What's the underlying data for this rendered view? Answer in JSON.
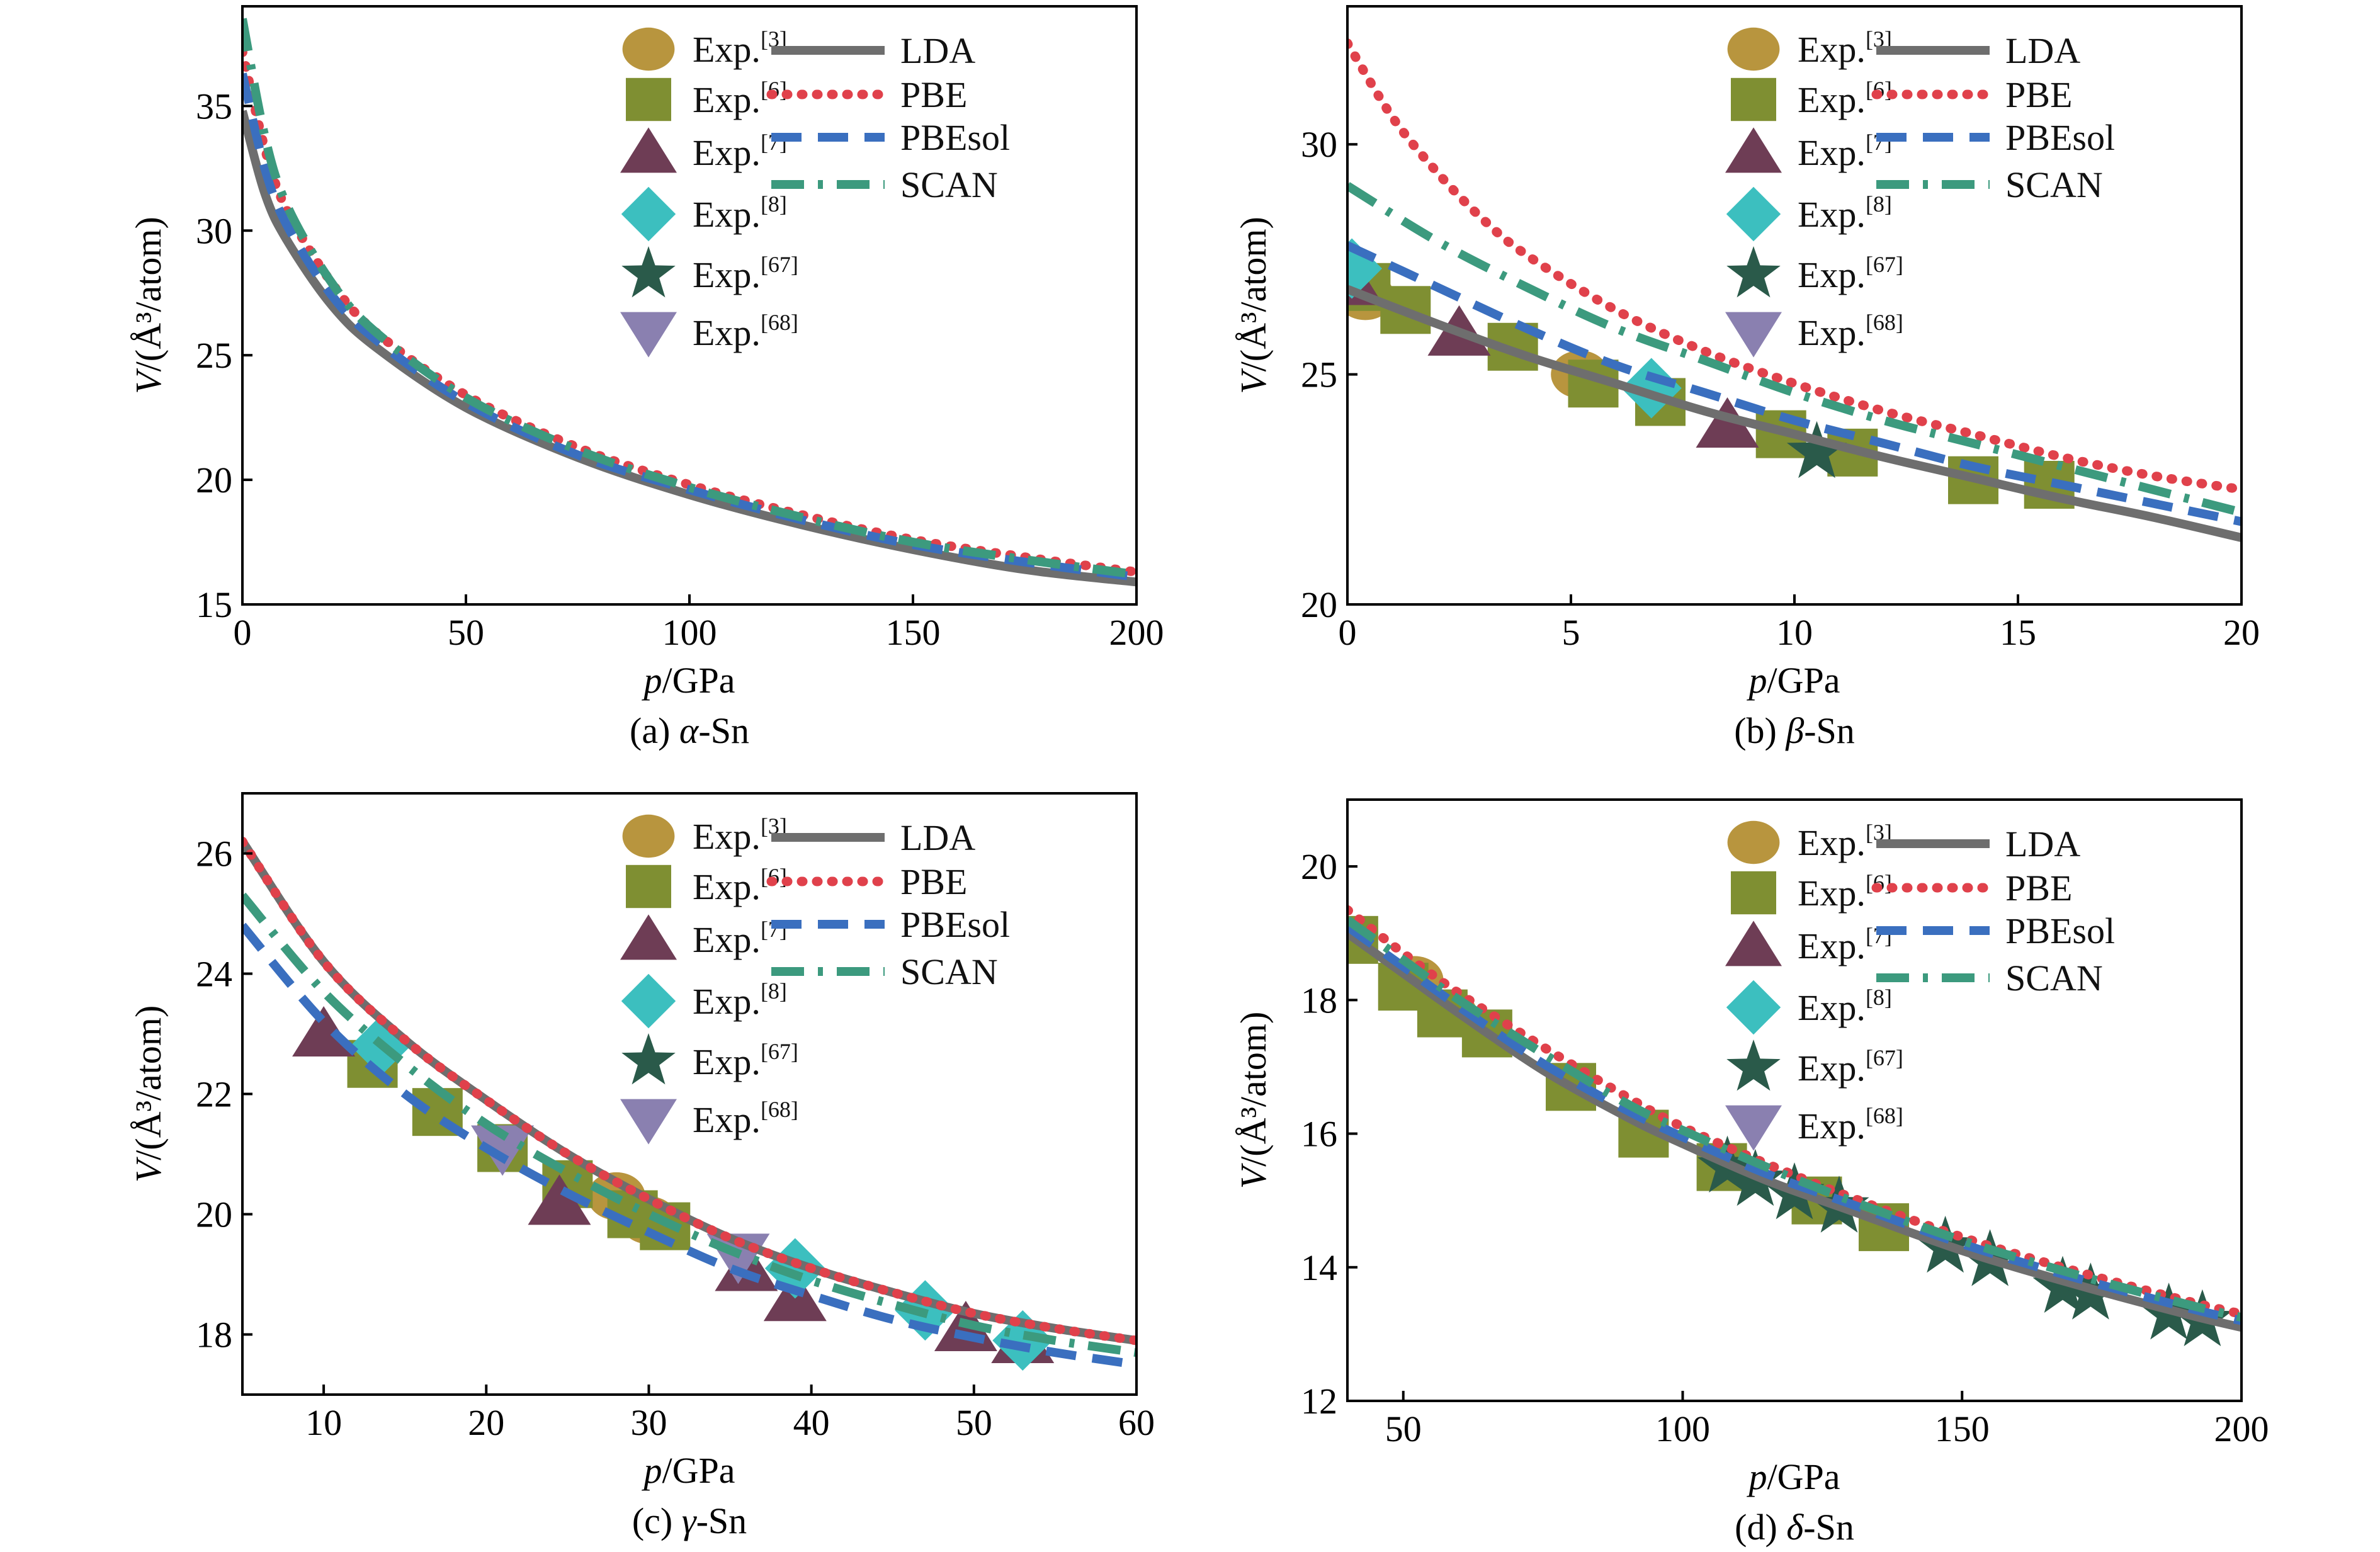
{
  "legend": {
    "experiments": [
      {
        "name": "Exp.",
        "ref": "[3]",
        "marker": "circle",
        "color": "#b8953e"
      },
      {
        "name": "Exp.",
        "ref": "[6]",
        "marker": "square",
        "color": "#7f8f32"
      },
      {
        "name": "Exp.",
        "ref": "[7]",
        "marker": "triangle-up",
        "color": "#6e3d55"
      },
      {
        "name": "Exp.",
        "ref": "[8]",
        "marker": "diamond",
        "color": "#3cbfbf"
      },
      {
        "name": "Exp.",
        "ref": "[67]",
        "marker": "star",
        "color": "#2a5a4a"
      },
      {
        "name": "Exp.",
        "ref": "[68]",
        "marker": "triangle-down",
        "color": "#8a80b0"
      }
    ],
    "functionals": [
      {
        "name": "LDA",
        "style": "solid",
        "color": "#6e6e6e"
      },
      {
        "name": "PBE",
        "style": "dotted",
        "color": "#e0414b"
      },
      {
        "name": "PBEsol",
        "style": "dashed",
        "color": "#3a6fbf"
      },
      {
        "name": "SCAN",
        "style": "dashdot",
        "color": "#3c9a7e"
      }
    ]
  },
  "chart_data": [
    {
      "type": "line",
      "caption": {
        "prefix": "(a) ",
        "symbol": "α",
        "suffix": "-Sn"
      },
      "xlabel": {
        "var": "p",
        "unit": "/GPa"
      },
      "ylabel": {
        "var": "V",
        "unit": "/(Å³/atom)"
      },
      "xlim": [
        0,
        200
      ],
      "ylim": [
        15,
        39
      ],
      "xticks": [
        0,
        50,
        100,
        150,
        200
      ],
      "yticks": [
        15,
        20,
        25,
        30,
        35
      ],
      "series": [
        {
          "name": "LDA",
          "x": [
            0,
            5,
            10,
            20,
            30,
            50,
            75,
            100,
            125,
            150,
            175,
            200
          ],
          "y": [
            34.8,
            31.5,
            29.6,
            27.0,
            25.3,
            22.9,
            20.9,
            19.4,
            18.2,
            17.2,
            16.4,
            15.9
          ]
        },
        {
          "name": "PBE",
          "x": [
            0,
            5,
            10,
            20,
            30,
            50,
            75,
            100,
            125,
            150,
            175,
            200
          ],
          "y": [
            37.2,
            33.3,
            30.8,
            27.9,
            25.9,
            23.4,
            21.3,
            19.8,
            18.6,
            17.6,
            16.9,
            16.3
          ]
        },
        {
          "name": "PBEsol",
          "x": [
            0,
            5,
            10,
            20,
            30,
            50,
            75,
            100,
            125,
            150,
            175,
            200
          ],
          "y": [
            36.3,
            32.5,
            30.2,
            27.4,
            25.6,
            23.1,
            21.0,
            19.6,
            18.4,
            17.4,
            16.7,
            16.1
          ]
        },
        {
          "name": "SCAN",
          "x": [
            0,
            5,
            10,
            20,
            30,
            50,
            75,
            100,
            125,
            150,
            175,
            200
          ],
          "y": [
            38.5,
            33.8,
            31.0,
            27.9,
            25.9,
            23.3,
            21.2,
            19.7,
            18.5,
            17.5,
            16.8,
            16.2
          ]
        }
      ],
      "points": []
    },
    {
      "type": "line",
      "caption": {
        "prefix": "(b) ",
        "symbol": "β",
        "suffix": "-Sn"
      },
      "xlabel": {
        "var": "p",
        "unit": "/GPa"
      },
      "ylabel": {
        "var": "V",
        "unit": "/(Å³/atom)"
      },
      "xlim": [
        0,
        20
      ],
      "ylim": [
        20,
        33
      ],
      "xticks": [
        0,
        5,
        10,
        15,
        20
      ],
      "yticks": [
        20,
        25,
        30
      ],
      "series": [
        {
          "name": "LDA",
          "x": [
            0,
            2,
            4,
            6,
            8,
            10,
            12,
            14,
            16,
            18,
            20
          ],
          "y": [
            26.85,
            26.1,
            25.4,
            24.8,
            24.2,
            23.7,
            23.2,
            22.75,
            22.3,
            21.9,
            21.45
          ]
        },
        {
          "name": "PBE",
          "x": [
            0,
            1,
            2,
            3,
            4,
            6,
            8,
            10,
            12,
            14,
            16,
            18,
            20
          ],
          "y": [
            32.2,
            30.6,
            29.4,
            28.4,
            27.6,
            26.4,
            25.5,
            24.8,
            24.2,
            23.7,
            23.2,
            22.8,
            22.5
          ]
        },
        {
          "name": "PBEsol",
          "x": [
            0,
            2,
            4,
            6,
            8,
            10,
            12,
            14,
            16,
            18,
            20
          ],
          "y": [
            27.8,
            26.9,
            26.0,
            25.2,
            24.6,
            24.0,
            23.5,
            23.0,
            22.6,
            22.2,
            21.8
          ]
        },
        {
          "name": "SCAN",
          "x": [
            0,
            2,
            4,
            6,
            8,
            10,
            12,
            14,
            16,
            18,
            20
          ],
          "y": [
            29.1,
            27.9,
            26.9,
            26.0,
            25.3,
            24.6,
            24.0,
            23.5,
            23.0,
            22.5,
            22.0
          ]
        }
      ],
      "points": [
        {
          "set": 0,
          "x": [
            0.4,
            5.2
          ],
          "y": [
            26.7,
            25.0
          ]
        },
        {
          "set": 1,
          "x": [
            0.4,
            1.3,
            3.7,
            5.5,
            7.0,
            9.7,
            11.3,
            14.0,
            15.7
          ],
          "y": [
            26.9,
            26.4,
            25.6,
            24.8,
            24.4,
            23.7,
            23.3,
            22.7,
            22.6
          ]
        },
        {
          "set": 2,
          "x": [
            0.1,
            2.5,
            8.5
          ],
          "y": [
            27.0,
            25.9,
            23.9
          ]
        },
        {
          "set": 3,
          "x": [
            0.1,
            6.8
          ],
          "y": [
            27.3,
            24.7
          ]
        },
        {
          "set": 4,
          "x": [
            10.5
          ],
          "y": [
            23.3
          ]
        }
      ]
    },
    {
      "type": "line",
      "caption": {
        "prefix": "(c) ",
        "symbol": "γ",
        "suffix": "-Sn"
      },
      "xlabel": {
        "var": "p",
        "unit": "/GPa"
      },
      "ylabel": {
        "var": "V",
        "unit": "/(Å³/atom)"
      },
      "xlim": [
        5,
        60
      ],
      "ylim": [
        17,
        27
      ],
      "xticks": [
        10,
        20,
        30,
        40,
        50,
        60
      ],
      "yticks": [
        18,
        20,
        22,
        24,
        26
      ],
      "series": [
        {
          "name": "LDA",
          "x": [
            5,
            10,
            15,
            20,
            25,
            30,
            35,
            40,
            45,
            50,
            55,
            60
          ],
          "y": [
            26.2,
            24.2,
            22.9,
            21.9,
            21.0,
            20.25,
            19.6,
            19.1,
            18.7,
            18.35,
            18.1,
            17.9
          ]
        },
        {
          "name": "PBE",
          "x": [
            5,
            10,
            15,
            20,
            25,
            30,
            35,
            40,
            45,
            50,
            55,
            60
          ],
          "y": [
            26.2,
            24.2,
            22.9,
            21.9,
            21.0,
            20.25,
            19.6,
            19.1,
            18.7,
            18.35,
            18.1,
            17.9
          ]
        },
        {
          "name": "PBEsol",
          "x": [
            5,
            10,
            15,
            20,
            25,
            30,
            35,
            40,
            45,
            50,
            55,
            60
          ],
          "y": [
            24.8,
            23.2,
            22.0,
            21.1,
            20.35,
            19.7,
            19.1,
            18.65,
            18.25,
            17.95,
            17.7,
            17.5
          ]
        },
        {
          "name": "SCAN",
          "x": [
            5,
            10,
            15,
            20,
            25,
            30,
            35,
            40,
            45,
            50,
            55,
            60
          ],
          "y": [
            25.3,
            23.7,
            22.5,
            21.5,
            20.7,
            20.0,
            19.4,
            18.9,
            18.5,
            18.15,
            17.9,
            17.7
          ]
        }
      ],
      "points": [
        {
          "set": 0,
          "x": [
            28.0,
            30.0
          ],
          "y": [
            20.3,
            19.9
          ]
        },
        {
          "set": 1,
          "x": [
            13.0,
            17.0,
            21.0,
            25.0,
            29.0,
            31.0
          ],
          "y": [
            22.5,
            21.7,
            21.1,
            20.5,
            20.0,
            19.8
          ]
        },
        {
          "set": 2,
          "x": [
            10.0,
            24.5,
            36.0,
            39.0,
            49.5,
            53.0
          ],
          "y": [
            23.0,
            20.2,
            19.1,
            18.6,
            18.1,
            17.9
          ]
        },
        {
          "set": 3,
          "x": [
            13.5,
            39.0,
            47.0,
            53.0
          ],
          "y": [
            22.8,
            19.1,
            18.4,
            17.9
          ]
        },
        {
          "set": 5,
          "x": [
            21.0,
            35.5
          ],
          "y": [
            21.1,
            19.3
          ]
        }
      ]
    },
    {
      "type": "line",
      "caption": {
        "prefix": "(d) ",
        "symbol": "δ",
        "suffix": "-Sn"
      },
      "xlabel": {
        "var": "p",
        "unit": "/GPa"
      },
      "ylabel": {
        "var": "V",
        "unit": "/(Å³/atom)"
      },
      "xlim": [
        40,
        200
      ],
      "ylim": [
        12,
        21
      ],
      "xticks": [
        50,
        100,
        150,
        200
      ],
      "yticks": [
        12,
        14,
        16,
        18,
        20
      ],
      "series": [
        {
          "name": "LDA",
          "x": [
            40,
            50,
            60,
            75,
            90,
            100,
            115,
            130,
            150,
            170,
            190,
            200
          ],
          "y": [
            19.0,
            18.4,
            17.8,
            16.95,
            16.25,
            15.85,
            15.3,
            14.85,
            14.25,
            13.75,
            13.3,
            13.1
          ]
        },
        {
          "name": "PBE",
          "x": [
            40,
            50,
            60,
            75,
            90,
            100,
            115,
            130,
            150,
            170,
            190,
            200
          ],
          "y": [
            19.35,
            18.7,
            18.1,
            17.3,
            16.55,
            16.1,
            15.55,
            15.05,
            14.45,
            13.95,
            13.5,
            13.3
          ]
        },
        {
          "name": "PBEsol",
          "x": [
            40,
            50,
            60,
            75,
            90,
            100,
            115,
            130,
            150,
            170,
            190,
            200
          ],
          "y": [
            19.1,
            18.5,
            17.9,
            17.05,
            16.35,
            15.95,
            15.4,
            14.95,
            14.35,
            13.85,
            13.4,
            13.2
          ]
        },
        {
          "name": "SCAN",
          "x": [
            40,
            50,
            60,
            75,
            90,
            100,
            115,
            130,
            150,
            170,
            190,
            200
          ],
          "y": [
            19.2,
            18.6,
            18.0,
            17.2,
            16.45,
            16.05,
            15.5,
            15.0,
            14.4,
            13.9,
            13.45,
            13.25
          ]
        }
      ],
      "points": [
        {
          "set": 0,
          "x": [
            52,
            58
          ],
          "y": [
            18.3,
            17.8
          ]
        },
        {
          "set": 1,
          "x": [
            41,
            50,
            57,
            65,
            80,
            93,
            107,
            124,
            136
          ],
          "y": [
            18.9,
            18.2,
            17.8,
            17.5,
            16.7,
            16.0,
            15.5,
            15.0,
            14.6
          ]
        },
        {
          "set": 4,
          "x": [
            108,
            113,
            120,
            128,
            147,
            155,
            168,
            173,
            187,
            193
          ],
          "y": [
            15.5,
            15.3,
            15.1,
            14.9,
            14.3,
            14.1,
            13.7,
            13.6,
            13.3,
            13.2
          ]
        }
      ]
    }
  ]
}
